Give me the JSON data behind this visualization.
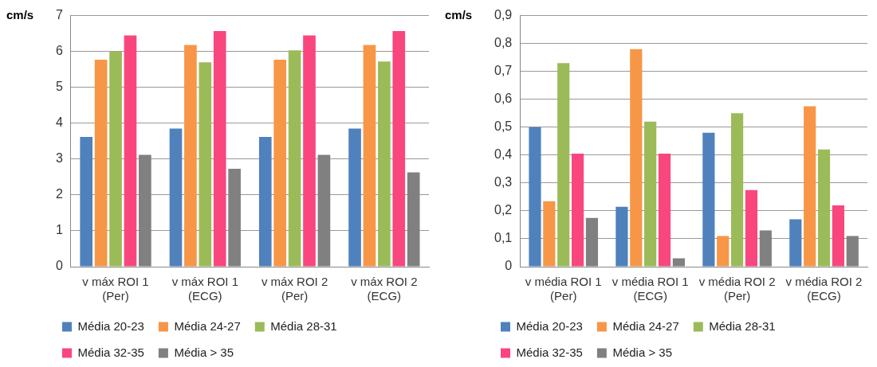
{
  "chart_data": [
    {
      "type": "bar",
      "ylabel": "cm/s",
      "categories": [
        "v máx ROI 1 (Per)",
        "v máx ROI 1 (ECG)",
        "v máx ROI 2 (Per)",
        "v máx ROI 2 (ECG)"
      ],
      "series": [
        {
          "name": "Média 20-23",
          "color": "#4f81bd",
          "values": [
            3.62,
            3.85,
            3.62,
            3.85
          ]
        },
        {
          "name": "Média 24-27",
          "color": "#f79646",
          "values": [
            5.77,
            6.18,
            5.77,
            6.18
          ]
        },
        {
          "name": "Média 28-31",
          "color": "#9bbb59",
          "values": [
            6.0,
            5.7,
            6.03,
            5.72
          ]
        },
        {
          "name": "Média 32-35",
          "color": "#f9467e",
          "values": [
            6.45,
            6.57,
            6.45,
            6.57
          ]
        },
        {
          "name": "Média > 35",
          "color": "#808080",
          "values": [
            3.12,
            2.73,
            3.12,
            2.63
          ]
        }
      ],
      "ylim": [
        0,
        7
      ],
      "yticks": [
        0,
        1,
        2,
        3,
        4,
        5,
        6,
        7
      ],
      "grid": "y",
      "legend": "bottom"
    },
    {
      "type": "bar",
      "ylabel": "cm/s",
      "categories": [
        "v média ROI 1 (Per)",
        "v média ROI 1 (ECG)",
        "v média ROI 2 (Per)",
        "v média ROI 2 (ECG)"
      ],
      "series": [
        {
          "name": "Média 20-23",
          "color": "#4f81bd",
          "values": [
            0.5,
            0.215,
            0.48,
            0.17
          ]
        },
        {
          "name": "Média 24-27",
          "color": "#f79646",
          "values": [
            0.235,
            0.78,
            0.11,
            0.575
          ]
        },
        {
          "name": "Média 28-31",
          "color": "#9bbb59",
          "values": [
            0.73,
            0.52,
            0.55,
            0.42
          ]
        },
        {
          "name": "Média 32-35",
          "color": "#f9467e",
          "values": [
            0.405,
            0.405,
            0.275,
            0.22
          ]
        },
        {
          "name": "Média > 35",
          "color": "#808080",
          "values": [
            0.175,
            0.03,
            0.13,
            0.11
          ]
        }
      ],
      "ylim": [
        0,
        0.9
      ],
      "yticks": [
        0,
        {
          "value": 0.1,
          "label": "0,1"
        },
        {
          "value": 0.2,
          "label": "0,2"
        },
        {
          "value": 0.3,
          "label": "0,3"
        },
        {
          "value": 0.4,
          "label": "0,4"
        },
        {
          "value": 0.5,
          "label": "0,5"
        },
        {
          "value": 0.6,
          "label": "0,6"
        },
        {
          "value": 0.7,
          "label": "0,7"
        },
        {
          "value": 0.8,
          "label": "0,8"
        },
        {
          "value": 0.9,
          "label": "0,9"
        }
      ],
      "grid": "y",
      "legend": "bottom"
    }
  ]
}
